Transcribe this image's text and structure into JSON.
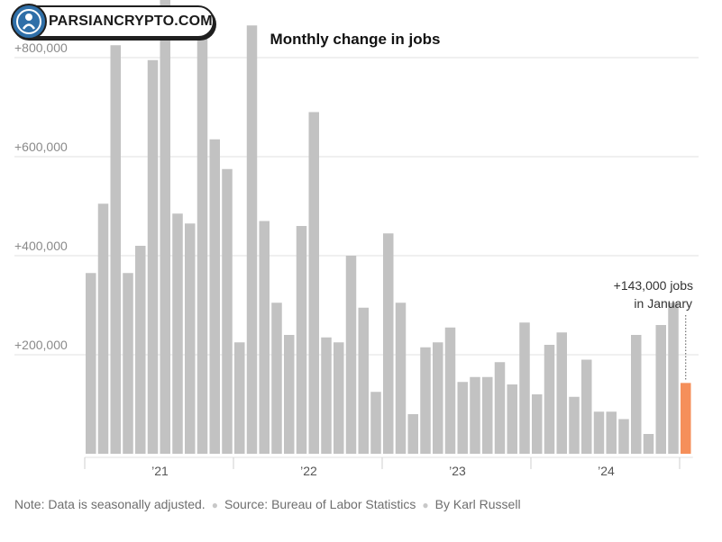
{
  "watermark": {
    "text": "PARSIANCRYPTO.COM"
  },
  "chart_data": {
    "type": "bar",
    "title": "Monthly change in jobs",
    "xlabel": "",
    "ylabel": "",
    "ylim": [
      0,
      900000
    ],
    "yticks": [
      200000,
      400000,
      600000,
      800000
    ],
    "ytick_labels": [
      "+200,000",
      "+400,000",
      "+600,000",
      "+800,000"
    ],
    "xtick_labels": [
      "’21",
      "’22",
      "’23",
      "’24"
    ],
    "grid": true,
    "x_start": "Jan 2021",
    "x_end": "Jan 2025",
    "values": [
      365000,
      505000,
      825000,
      365000,
      420000,
      795000,
      930000,
      485000,
      465000,
      850000,
      635000,
      575000,
      225000,
      865000,
      470000,
      305000,
      240000,
      460000,
      690000,
      235000,
      225000,
      400000,
      295000,
      125000,
      445000,
      305000,
      80000,
      215000,
      225000,
      255000,
      145000,
      155000,
      155000,
      185000,
      140000,
      265000,
      120000,
      220000,
      245000,
      115000,
      190000,
      85000,
      85000,
      70000,
      240000,
      40000,
      260000,
      305000,
      143000
    ],
    "highlight_color": "#f58f5a",
    "bar_color": "#c2c2c2",
    "annotation": {
      "line1": "+143,000 jobs",
      "line2": "in January"
    }
  },
  "footer": {
    "note": "Note: Data is seasonally adjusted.",
    "source": "Source: Bureau of Labor Statistics",
    "byline": "By Karl Russell"
  }
}
